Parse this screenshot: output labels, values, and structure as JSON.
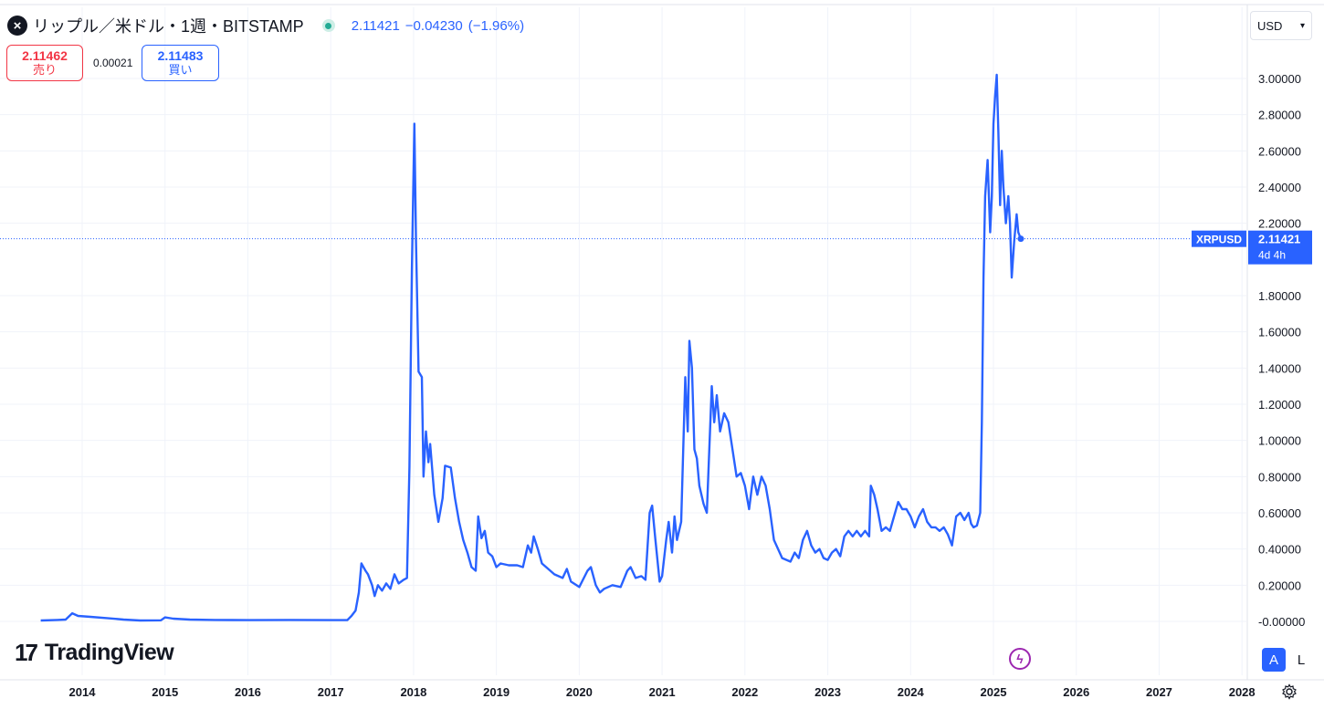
{
  "header": {
    "symbol_title": "リップル／米ドル・1週・BITSTAMP",
    "last": "2.11421",
    "change": "−0.04230",
    "change_pct": "(−1.96%)",
    "status_color": "#22ab94"
  },
  "quotes": {
    "sell_price": "2.11462",
    "sell_label": "売り",
    "spread": "0.00021",
    "buy_price": "2.11483",
    "buy_label": "買い"
  },
  "currency_selector": {
    "value": "USD"
  },
  "branding": {
    "logo_text": "TradingView",
    "logo_mark": "17"
  },
  "scale_buttons": {
    "auto": "A",
    "log": "L"
  },
  "icons": [
    "xrp-logo-icon",
    "market-status-icon",
    "chevron-down-icon",
    "flash-icon",
    "gear-icon"
  ],
  "chart_data": {
    "type": "line",
    "series": [
      {
        "name": "XRPUSD",
        "color": "#2962ff",
        "points": [
          [
            2013.5,
            0.005
          ],
          [
            2013.7,
            0.008
          ],
          [
            2013.8,
            0.01
          ],
          [
            2013.88,
            0.045
          ],
          [
            2013.95,
            0.03
          ],
          [
            2014.1,
            0.025
          ],
          [
            2014.3,
            0.018
          ],
          [
            2014.5,
            0.01
          ],
          [
            2014.7,
            0.005
          ],
          [
            2014.95,
            0.006
          ],
          [
            2015.0,
            0.022
          ],
          [
            2015.1,
            0.015
          ],
          [
            2015.3,
            0.01
          ],
          [
            2015.6,
            0.008
          ],
          [
            2016.0,
            0.007
          ],
          [
            2016.5,
            0.008
          ],
          [
            2017.0,
            0.007
          ],
          [
            2017.2,
            0.007
          ],
          [
            2017.25,
            0.03
          ],
          [
            2017.3,
            0.06
          ],
          [
            2017.34,
            0.16
          ],
          [
            2017.37,
            0.32
          ],
          [
            2017.42,
            0.28
          ],
          [
            2017.45,
            0.26
          ],
          [
            2017.5,
            0.2
          ],
          [
            2017.53,
            0.14
          ],
          [
            2017.57,
            0.2
          ],
          [
            2017.62,
            0.17
          ],
          [
            2017.67,
            0.21
          ],
          [
            2017.72,
            0.18
          ],
          [
            2017.77,
            0.26
          ],
          [
            2017.82,
            0.21
          ],
          [
            2017.88,
            0.23
          ],
          [
            2017.92,
            0.24
          ],
          [
            2017.95,
            0.85
          ],
          [
            2017.98,
            1.95
          ],
          [
            2018.01,
            2.75
          ],
          [
            2018.03,
            2.1
          ],
          [
            2018.06,
            1.38
          ],
          [
            2018.1,
            1.35
          ],
          [
            2018.12,
            0.8
          ],
          [
            2018.15,
            1.05
          ],
          [
            2018.18,
            0.88
          ],
          [
            2018.2,
            0.98
          ],
          [
            2018.25,
            0.7
          ],
          [
            2018.3,
            0.55
          ],
          [
            2018.35,
            0.68
          ],
          [
            2018.38,
            0.86
          ],
          [
            2018.45,
            0.85
          ],
          [
            2018.5,
            0.68
          ],
          [
            2018.55,
            0.55
          ],
          [
            2018.6,
            0.45
          ],
          [
            2018.65,
            0.38
          ],
          [
            2018.7,
            0.3
          ],
          [
            2018.75,
            0.28
          ],
          [
            2018.78,
            0.58
          ],
          [
            2018.82,
            0.46
          ],
          [
            2018.86,
            0.5
          ],
          [
            2018.9,
            0.38
          ],
          [
            2018.95,
            0.36
          ],
          [
            2019.0,
            0.3
          ],
          [
            2019.05,
            0.32
          ],
          [
            2019.15,
            0.31
          ],
          [
            2019.25,
            0.31
          ],
          [
            2019.32,
            0.3
          ],
          [
            2019.38,
            0.42
          ],
          [
            2019.42,
            0.38
          ],
          [
            2019.45,
            0.47
          ],
          [
            2019.5,
            0.4
          ],
          [
            2019.55,
            0.32
          ],
          [
            2019.6,
            0.3
          ],
          [
            2019.7,
            0.26
          ],
          [
            2019.8,
            0.24
          ],
          [
            2019.85,
            0.29
          ],
          [
            2019.9,
            0.22
          ],
          [
            2020.0,
            0.19
          ],
          [
            2020.1,
            0.28
          ],
          [
            2020.14,
            0.3
          ],
          [
            2020.2,
            0.2
          ],
          [
            2020.25,
            0.16
          ],
          [
            2020.3,
            0.18
          ],
          [
            2020.4,
            0.2
          ],
          [
            2020.5,
            0.19
          ],
          [
            2020.58,
            0.28
          ],
          [
            2020.62,
            0.3
          ],
          [
            2020.68,
            0.24
          ],
          [
            2020.75,
            0.25
          ],
          [
            2020.8,
            0.23
          ],
          [
            2020.85,
            0.6
          ],
          [
            2020.88,
            0.64
          ],
          [
            2020.92,
            0.45
          ],
          [
            2020.97,
            0.22
          ],
          [
            2021.0,
            0.25
          ],
          [
            2021.05,
            0.45
          ],
          [
            2021.08,
            0.55
          ],
          [
            2021.12,
            0.38
          ],
          [
            2021.15,
            0.58
          ],
          [
            2021.18,
            0.45
          ],
          [
            2021.23,
            0.55
          ],
          [
            2021.28,
            1.35
          ],
          [
            2021.31,
            1.05
          ],
          [
            2021.33,
            1.55
          ],
          [
            2021.36,
            1.4
          ],
          [
            2021.39,
            0.95
          ],
          [
            2021.42,
            0.9
          ],
          [
            2021.45,
            0.75
          ],
          [
            2021.5,
            0.65
          ],
          [
            2021.54,
            0.6
          ],
          [
            2021.6,
            1.3
          ],
          [
            2021.63,
            1.1
          ],
          [
            2021.66,
            1.25
          ],
          [
            2021.7,
            1.05
          ],
          [
            2021.75,
            1.15
          ],
          [
            2021.8,
            1.1
          ],
          [
            2021.85,
            0.95
          ],
          [
            2021.9,
            0.8
          ],
          [
            2021.95,
            0.82
          ],
          [
            2022.0,
            0.75
          ],
          [
            2022.05,
            0.62
          ],
          [
            2022.1,
            0.8
          ],
          [
            2022.15,
            0.7
          ],
          [
            2022.2,
            0.8
          ],
          [
            2022.25,
            0.75
          ],
          [
            2022.3,
            0.62
          ],
          [
            2022.35,
            0.45
          ],
          [
            2022.45,
            0.35
          ],
          [
            2022.55,
            0.33
          ],
          [
            2022.6,
            0.38
          ],
          [
            2022.65,
            0.35
          ],
          [
            2022.7,
            0.45
          ],
          [
            2022.75,
            0.5
          ],
          [
            2022.8,
            0.42
          ],
          [
            2022.85,
            0.38
          ],
          [
            2022.9,
            0.4
          ],
          [
            2022.95,
            0.35
          ],
          [
            2023.0,
            0.34
          ],
          [
            2023.05,
            0.38
          ],
          [
            2023.1,
            0.4
          ],
          [
            2023.15,
            0.36
          ],
          [
            2023.2,
            0.47
          ],
          [
            2023.25,
            0.5
          ],
          [
            2023.3,
            0.47
          ],
          [
            2023.35,
            0.5
          ],
          [
            2023.4,
            0.47
          ],
          [
            2023.45,
            0.5
          ],
          [
            2023.5,
            0.47
          ],
          [
            2023.52,
            0.75
          ],
          [
            2023.56,
            0.7
          ],
          [
            2023.6,
            0.62
          ],
          [
            2023.65,
            0.5
          ],
          [
            2023.7,
            0.52
          ],
          [
            2023.75,
            0.5
          ],
          [
            2023.8,
            0.58
          ],
          [
            2023.85,
            0.66
          ],
          [
            2023.9,
            0.62
          ],
          [
            2023.95,
            0.62
          ],
          [
            2024.0,
            0.58
          ],
          [
            2024.05,
            0.52
          ],
          [
            2024.1,
            0.58
          ],
          [
            2024.15,
            0.62
          ],
          [
            2024.2,
            0.55
          ],
          [
            2024.25,
            0.52
          ],
          [
            2024.3,
            0.52
          ],
          [
            2024.35,
            0.5
          ],
          [
            2024.4,
            0.52
          ],
          [
            2024.45,
            0.48
          ],
          [
            2024.5,
            0.42
          ],
          [
            2024.55,
            0.58
          ],
          [
            2024.6,
            0.6
          ],
          [
            2024.65,
            0.56
          ],
          [
            2024.7,
            0.6
          ],
          [
            2024.73,
            0.54
          ],
          [
            2024.76,
            0.52
          ],
          [
            2024.8,
            0.53
          ],
          [
            2024.84,
            0.6
          ],
          [
            2024.86,
            1.1
          ],
          [
            2024.88,
            1.9
          ],
          [
            2024.9,
            2.35
          ],
          [
            2024.93,
            2.55
          ],
          [
            2024.96,
            2.15
          ],
          [
            2024.98,
            2.35
          ],
          [
            2025.0,
            2.75
          ],
          [
            2025.02,
            2.9
          ],
          [
            2025.04,
            3.02
          ],
          [
            2025.06,
            2.7
          ],
          [
            2025.08,
            2.3
          ],
          [
            2025.1,
            2.6
          ],
          [
            2025.12,
            2.4
          ],
          [
            2025.15,
            2.2
          ],
          [
            2025.18,
            2.35
          ],
          [
            2025.2,
            2.2
          ],
          [
            2025.22,
            1.9
          ],
          [
            2025.25,
            2.1
          ],
          [
            2025.28,
            2.25
          ],
          [
            2025.3,
            2.15
          ],
          [
            2025.33,
            2.11421
          ]
        ]
      }
    ],
    "x_axis": {
      "ticks": [
        "2014",
        "2015",
        "2016",
        "2017",
        "2018",
        "2019",
        "2020",
        "2021",
        "2022",
        "2023",
        "2024",
        "2025",
        "2026",
        "2027",
        "2028"
      ]
    },
    "y_axis": {
      "ticks": [
        "-0.00000",
        "0.20000",
        "0.40000",
        "0.60000",
        "0.80000",
        "1.00000",
        "1.20000",
        "1.40000",
        "1.60000",
        "1.80000",
        "2.20000",
        "2.40000",
        "2.60000",
        "2.80000",
        "3.00000"
      ],
      "range": [
        -0.08,
        3.2
      ]
    },
    "last_price_label": {
      "symbol": "XRPUSD",
      "value": "2.11421",
      "countdown": "4d 4h"
    },
    "grid": true
  }
}
